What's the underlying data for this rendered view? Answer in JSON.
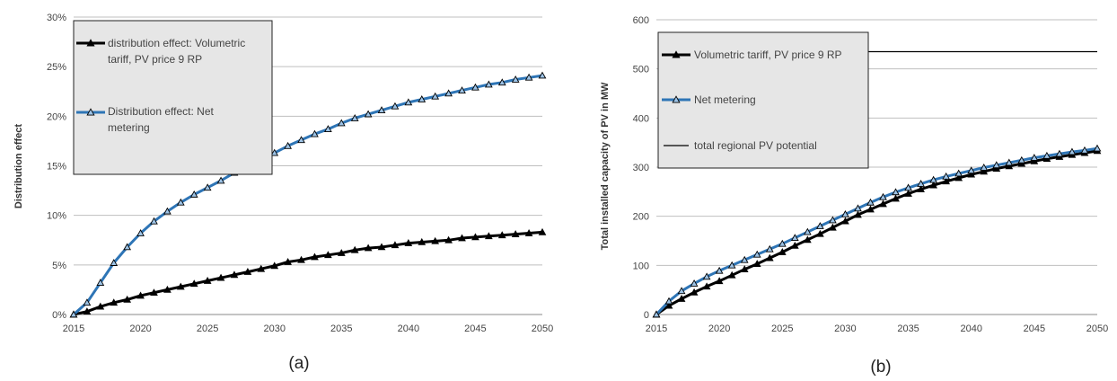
{
  "chart_data": [
    {
      "type": "line",
      "panel_label": "(a)",
      "xlabel": "",
      "ylabel": "Distribution effect",
      "xlim": [
        2015,
        2050
      ],
      "ylim": [
        0,
        30
      ],
      "x_ticks": [
        "2015",
        "2020",
        "2025",
        "2030",
        "2035",
        "2040",
        "2045",
        "2050"
      ],
      "y_ticks": [
        "0%",
        "5%",
        "10%",
        "15%",
        "20%",
        "25%",
        "30%"
      ],
      "grid": "horizontal",
      "legend_position": "top-left",
      "x": [
        2015,
        2016,
        2017,
        2018,
        2019,
        2020,
        2021,
        2022,
        2023,
        2024,
        2025,
        2026,
        2027,
        2028,
        2029,
        2030,
        2031,
        2032,
        2033,
        2034,
        2035,
        2036,
        2037,
        2038,
        2039,
        2040,
        2041,
        2042,
        2043,
        2044,
        2045,
        2046,
        2047,
        2048,
        2049,
        2050
      ],
      "series": [
        {
          "name": "distribution effect: Volumetric tariff, PV price 9 RP",
          "legend_lines": [
            "distribution effect: Volumetric",
            "tariff, PV price 9 RP"
          ],
          "color": "#000000",
          "values": [
            0.0,
            0.3,
            0.8,
            1.2,
            1.5,
            1.9,
            2.2,
            2.5,
            2.8,
            3.1,
            3.4,
            3.7,
            4.0,
            4.3,
            4.6,
            4.9,
            5.3,
            5.5,
            5.8,
            6.0,
            6.2,
            6.5,
            6.7,
            6.8,
            7.0,
            7.2,
            7.3,
            7.4,
            7.5,
            7.7,
            7.8,
            7.9,
            8.0,
            8.1,
            8.2,
            8.3
          ]
        },
        {
          "name": "Distribution effect: Net metering",
          "legend_lines": [
            "Distribution effect: Net",
            "metering"
          ],
          "color": "#2e75b6",
          "values": [
            0.0,
            1.2,
            3.2,
            5.2,
            6.8,
            8.2,
            9.4,
            10.4,
            11.3,
            12.1,
            12.8,
            13.5,
            14.3,
            15.0,
            15.7,
            16.3,
            17.0,
            17.6,
            18.2,
            18.7,
            19.3,
            19.8,
            20.2,
            20.6,
            21.0,
            21.4,
            21.7,
            22.0,
            22.3,
            22.6,
            22.9,
            23.2,
            23.4,
            23.7,
            23.9,
            24.1
          ]
        }
      ]
    },
    {
      "type": "line",
      "panel_label": "(b)",
      "xlabel": "",
      "ylabel": "Total installed capacity of PV in MW",
      "xlim": [
        2015,
        2050
      ],
      "ylim": [
        0,
        600
      ],
      "x_ticks": [
        "2015",
        "2020",
        "2025",
        "2030",
        "2035",
        "2040",
        "2045",
        "2050"
      ],
      "y_ticks": [
        "0",
        "100",
        "200",
        "300",
        "400",
        "500",
        "600"
      ],
      "grid": "horizontal",
      "legend_position": "top-left",
      "x": [
        2015,
        2016,
        2017,
        2018,
        2019,
        2020,
        2021,
        2022,
        2023,
        2024,
        2025,
        2026,
        2027,
        2028,
        2029,
        2030,
        2031,
        2032,
        2033,
        2034,
        2035,
        2036,
        2037,
        2038,
        2039,
        2040,
        2041,
        2042,
        2043,
        2044,
        2045,
        2046,
        2047,
        2048,
        2049,
        2050
      ],
      "series": [
        {
          "name": "Volumetric tariff, PV price 9 RP",
          "color": "#000000",
          "marker": "triangle",
          "values": [
            0,
            18,
            32,
            45,
            57,
            68,
            80,
            92,
            103,
            115,
            127,
            140,
            152,
            164,
            177,
            190,
            203,
            214,
            225,
            236,
            246,
            255,
            263,
            271,
            278,
            285,
            291,
            297,
            302,
            307,
            312,
            317,
            321,
            325,
            329,
            333
          ]
        },
        {
          "name": "Net metering",
          "color": "#2e75b6",
          "marker": "triangle",
          "values": [
            0,
            27,
            48,
            63,
            77,
            89,
            100,
            111,
            122,
            133,
            144,
            156,
            168,
            180,
            192,
            204,
            216,
            228,
            239,
            249,
            258,
            266,
            274,
            281,
            287,
            293,
            299,
            304,
            309,
            314,
            319,
            323,
            327,
            331,
            334,
            338
          ]
        },
        {
          "name": "total regional PV potential",
          "color": "#000000",
          "marker": "none",
          "flat_value": 535
        }
      ]
    }
  ]
}
